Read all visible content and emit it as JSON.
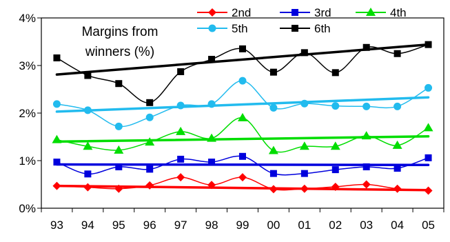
{
  "chart_data": {
    "type": "line",
    "title_lines": [
      "Margins from",
      "winners (%)"
    ],
    "x": [
      "93",
      "94",
      "95",
      "96",
      "97",
      "98",
      "99",
      "00",
      "01",
      "02",
      "03",
      "04",
      "05"
    ],
    "y_ticks": [
      "0%",
      "1%",
      "2%",
      "3%",
      "4%"
    ],
    "ylim": [
      0,
      4
    ],
    "grid": false,
    "legend_position": "top-right",
    "series": [
      {
        "name": "2nd",
        "color": "#ff0000",
        "marker": "diamond",
        "values": [
          0.47,
          0.44,
          0.41,
          0.48,
          0.65,
          0.49,
          0.65,
          0.4,
          0.41,
          0.45,
          0.5,
          0.41,
          0.37
        ],
        "trend": [
          0.47,
          0.38
        ]
      },
      {
        "name": "3rd",
        "color": "#0000dd",
        "marker": "square",
        "values": [
          0.97,
          0.72,
          0.87,
          0.82,
          1.03,
          0.97,
          1.09,
          0.73,
          0.73,
          0.81,
          0.87,
          0.84,
          1.06
        ],
        "trend": [
          0.92,
          0.91
        ]
      },
      {
        "name": "4th",
        "color": "#00dd00",
        "marker": "triangle",
        "values": [
          1.44,
          1.3,
          1.22,
          1.39,
          1.61,
          1.47,
          1.9,
          1.21,
          1.3,
          1.3,
          1.52,
          1.32,
          1.69
        ],
        "trend": [
          1.4,
          1.51
        ]
      },
      {
        "name": "5th",
        "color": "#22bbee",
        "marker": "circle",
        "values": [
          2.19,
          2.06,
          1.72,
          1.91,
          2.16,
          2.19,
          2.68,
          2.11,
          2.2,
          2.15,
          2.14,
          2.14,
          2.53
        ],
        "trend": [
          2.03,
          2.33
        ]
      },
      {
        "name": "6th",
        "color": "#000000",
        "marker": "square",
        "values": [
          3.16,
          2.79,
          2.62,
          2.22,
          2.87,
          3.13,
          3.35,
          2.86,
          3.27,
          2.85,
          3.38,
          3.25,
          3.44
        ],
        "trend": [
          2.81,
          3.44
        ]
      }
    ]
  }
}
